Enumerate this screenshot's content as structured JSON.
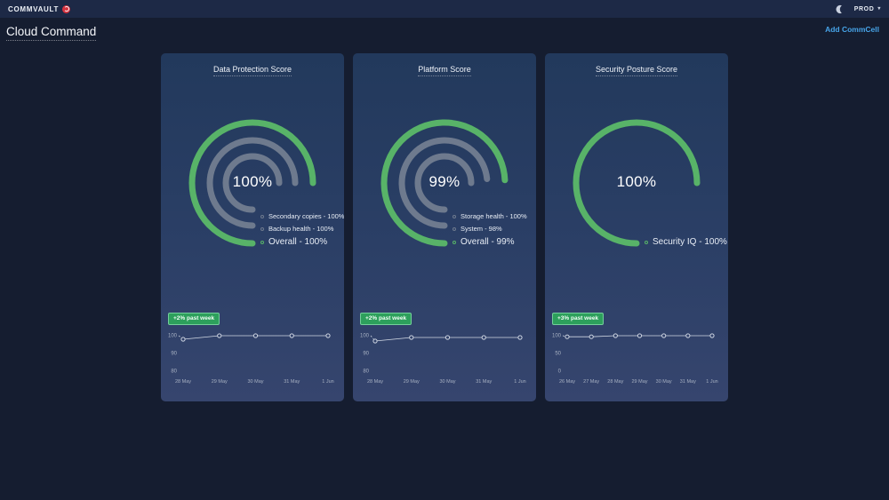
{
  "colors": {
    "green": "#58b368",
    "gray": "#6e7a8e",
    "line": "#cfd6e2",
    "marker_fill": "#31416a",
    "axis_text": "#a7b0c2",
    "badge_bg": "#2da05c",
    "badge_border": "#74cf9b",
    "link_blue": "#47a4e8"
  },
  "topbar": {
    "brand": "COMMVAULT",
    "environment": "PROD",
    "caret": "▾"
  },
  "page": {
    "title": "Cloud Command",
    "add_commcell": "Add CommCell"
  },
  "cards": [
    {
      "title": "Data Protection Score",
      "center_label": "100%",
      "badge": "+2% past week",
      "rings": [
        {
          "name": "Overall",
          "value": 100,
          "color": "green"
        },
        {
          "name": "Backup health",
          "value": 100,
          "color": "gray"
        },
        {
          "name": "Secondary copies",
          "value": 100,
          "color": "gray"
        }
      ],
      "legend": [
        {
          "label": "Secondary copies - 100%",
          "color": "gray",
          "emphasis": false
        },
        {
          "label": "Backup health - 100%",
          "color": "gray",
          "emphasis": false
        },
        {
          "label": "Overall - 100%",
          "color": "green",
          "emphasis": true
        }
      ],
      "trend": {
        "type": "line",
        "x": [
          "28 May",
          "29 May",
          "30 May",
          "31 May",
          "1 Jun"
        ],
        "values": [
          98,
          100,
          100,
          100,
          100
        ],
        "yticks": [
          100,
          90,
          80
        ]
      }
    },
    {
      "title": "Platform Score",
      "center_label": "99%",
      "badge": "+2% past week",
      "rings": [
        {
          "name": "Overall",
          "value": 99,
          "color": "green"
        },
        {
          "name": "System",
          "value": 98,
          "color": "gray"
        },
        {
          "name": "Storage health",
          "value": 100,
          "color": "gray"
        }
      ],
      "legend": [
        {
          "label": "Storage health - 100%",
          "color": "gray",
          "emphasis": false
        },
        {
          "label": "System - 98%",
          "color": "gray",
          "emphasis": false
        },
        {
          "label": "Overall - 99%",
          "color": "green",
          "emphasis": true
        }
      ],
      "trend": {
        "type": "line",
        "x": [
          "28 May",
          "29 May",
          "30 May",
          "31 May",
          "1 Jun"
        ],
        "values": [
          97,
          99,
          99,
          99,
          99
        ],
        "yticks": [
          100,
          90,
          80
        ]
      }
    },
    {
      "title": "Security Posture Score",
      "center_label": "100%",
      "badge": "+3% past week",
      "rings": [
        {
          "name": "Security IQ",
          "value": 100,
          "color": "green"
        }
      ],
      "legend": [
        {
          "label": "Security IQ - 100%",
          "color": "green",
          "emphasis": true
        }
      ],
      "trend": {
        "type": "line",
        "x": [
          "26 May",
          "27 May",
          "28 May",
          "29 May",
          "30 May",
          "31 May",
          "1 Jun"
        ],
        "values": [
          97,
          97,
          100,
          100,
          100,
          100,
          100
        ],
        "yticks": [
          100,
          50,
          0
        ]
      }
    }
  ]
}
